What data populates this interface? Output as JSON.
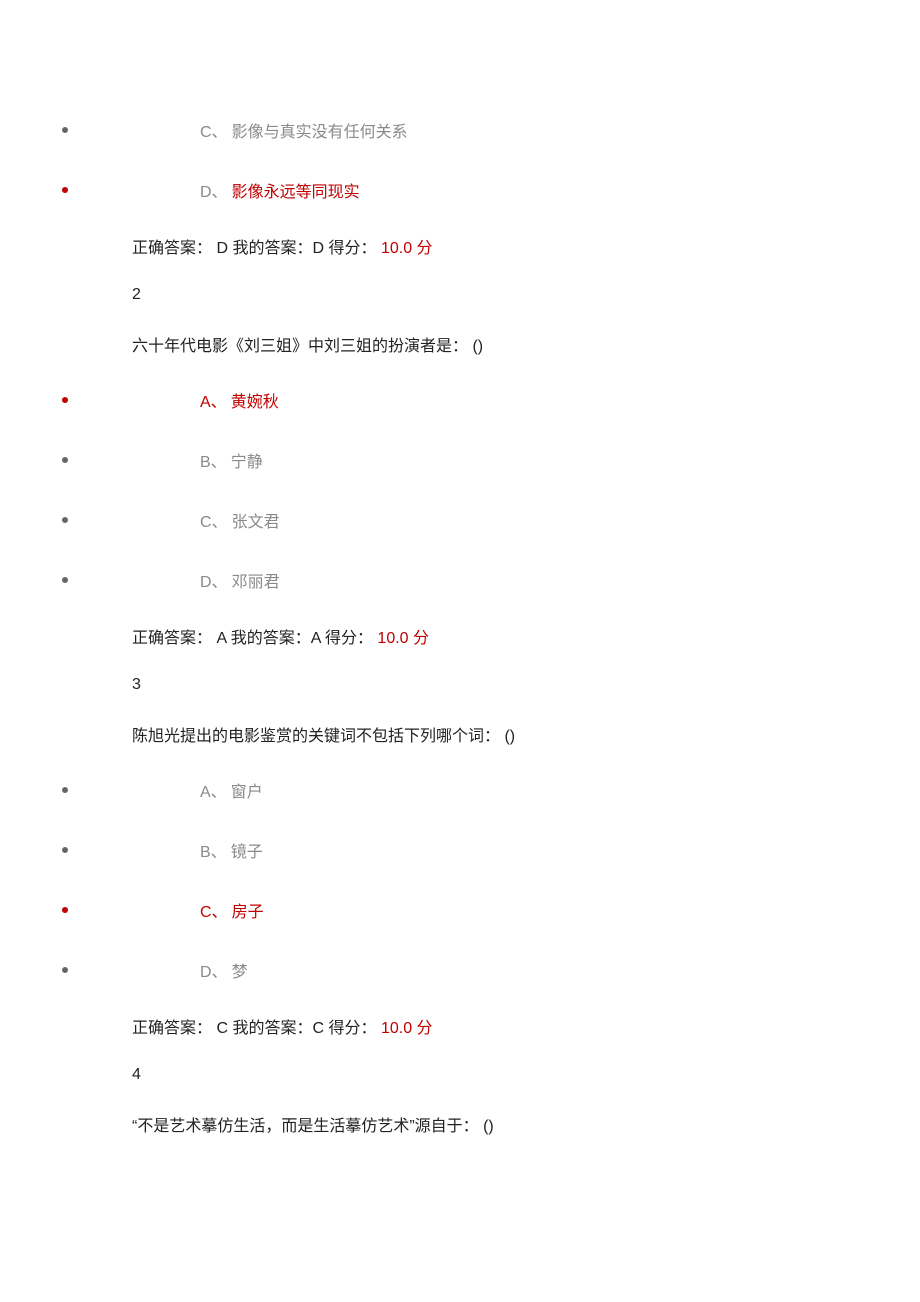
{
  "text_color_gray": "#8a8a8a",
  "text_color_red": "#c00000",
  "text_color_black": "#222222",
  "bullet_color_default": "#666666",
  "bullet_color_red": "#c00000",
  "background_color": "#ffffff",
  "font_family": "Microsoft YaHei",
  "font_size_pt": 12,
  "q1": {
    "optC_letter": "C、",
    "optC_text": "影像与真实没有任何关系",
    "optD_letter": "D、",
    "optD_text": "影像永远等同现实",
    "answer_prefix": "正确答案：",
    "correct": " D ",
    "my_prefix": "我的答案：",
    "my": "D ",
    "score_prefix": "得分：",
    "score_value": " 10.0 ",
    "score_unit": "分"
  },
  "q2": {
    "number": "2",
    "question": "六十年代电影《刘三姐》中刘三姐的扮演者是： ()",
    "optA_letter": "A、",
    "optA_text": "黄婉秋",
    "optB_letter": "B、",
    "optB_text": "宁静",
    "optC_letter": "C、",
    "optC_text": "张文君",
    "optD_letter": "D、",
    "optD_text": "邓丽君",
    "answer_prefix": "正确答案：",
    "correct": " A ",
    "my_prefix": "我的答案：",
    "my": "A ",
    "score_prefix": "得分：",
    "score_value": " 10.0 ",
    "score_unit": "分"
  },
  "q3": {
    "number": "3",
    "question": "陈旭光提出的电影鉴赏的关键词不包括下列哪个词： ()",
    "optA_letter": "A、",
    "optA_text": "窗户",
    "optB_letter": "B、",
    "optB_text": "镜子",
    "optC_letter": "C、",
    "optC_text": "房子",
    "optD_letter": "D、",
    "optD_text": "梦",
    "answer_prefix": "正确答案：",
    "correct": " C ",
    "my_prefix": "我的答案：",
    "my": "C ",
    "score_prefix": "得分：",
    "score_value": " 10.0 ",
    "score_unit": "分"
  },
  "q4": {
    "number": "4",
    "question": "“不是艺术摹仿生活，而是生活摹仿艺术”源自于： ()"
  }
}
